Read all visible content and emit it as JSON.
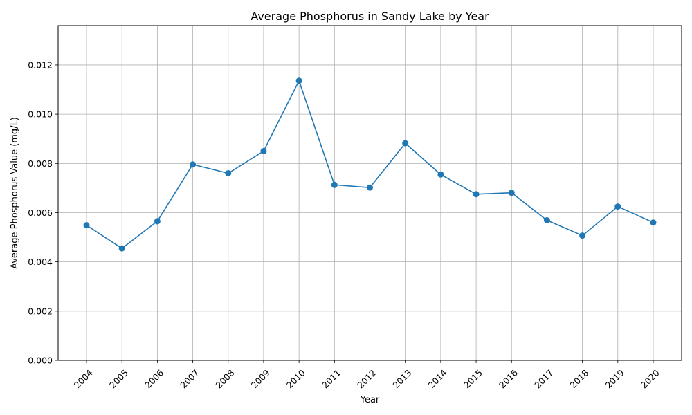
{
  "chart_data": {
    "type": "line",
    "title": "Average Phosphorus in Sandy Lake by Year",
    "xlabel": "Year",
    "ylabel": "Average Phosphorus Value (mg/L)",
    "categories": [
      "2004",
      "2005",
      "2006",
      "2007",
      "2008",
      "2009",
      "2010",
      "2011",
      "2012",
      "2013",
      "2014",
      "2015",
      "2016",
      "2017",
      "2018",
      "2019",
      "2020"
    ],
    "series": [
      {
        "values": [
          0.00549,
          0.00455,
          0.00565,
          0.00796,
          0.0076,
          0.0085,
          0.01136,
          0.00713,
          0.00702,
          0.00882,
          0.00755,
          0.00675,
          0.00681,
          0.00569,
          0.00507,
          0.00625,
          0.0056
        ],
        "color": "#1f77b4",
        "marker": "circle"
      }
    ],
    "ylim": [
      0,
      0.0136
    ],
    "yticks": [
      "0.000",
      "0.002",
      "0.004",
      "0.006",
      "0.008",
      "0.010",
      "0.012"
    ],
    "ytick_values": [
      0,
      0.002,
      0.004,
      0.006,
      0.008,
      0.01,
      0.012
    ],
    "grid": true,
    "legend": "none",
    "xtick_rotation_deg": 45
  }
}
